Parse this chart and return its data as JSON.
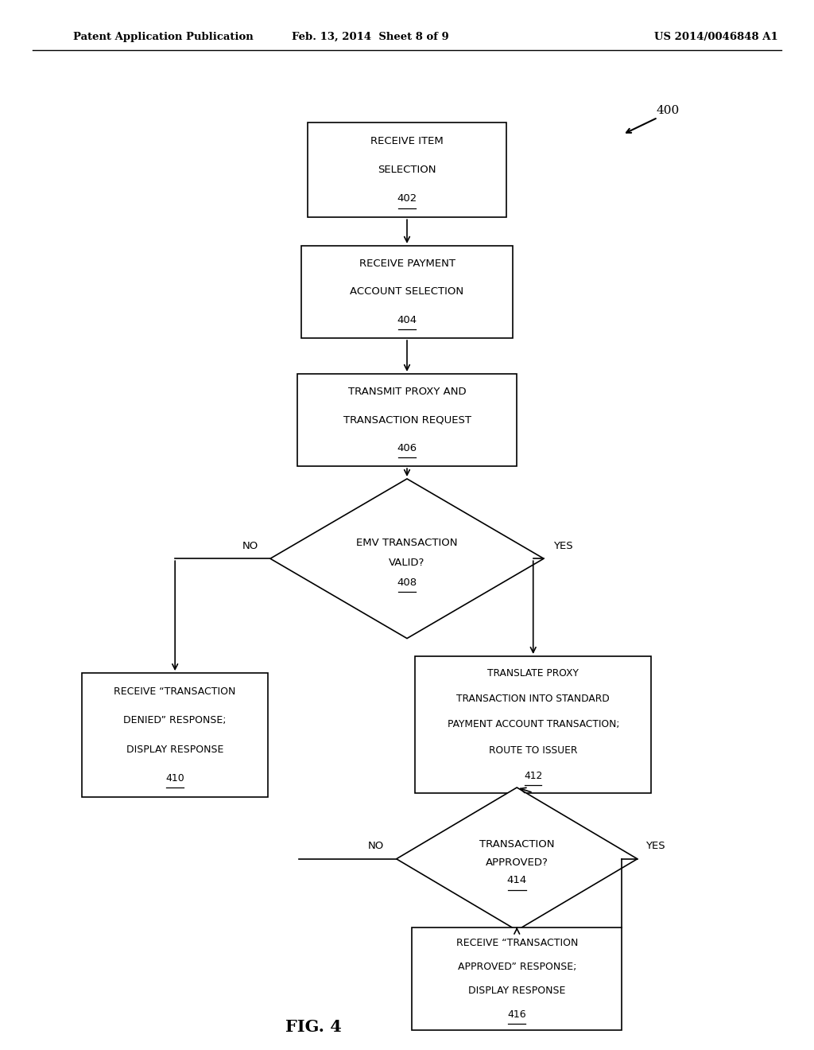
{
  "bg_color": "#ffffff",
  "header_left": "Patent Application Publication",
  "header_mid": "Feb. 13, 2014  Sheet 8 of 9",
  "header_right": "US 2014/0046848 A1",
  "fig_label": "FIG. 4",
  "ref_number": "400"
}
